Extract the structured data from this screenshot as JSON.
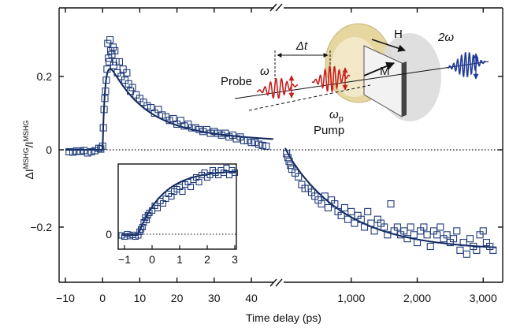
{
  "chart_data": {
    "type": "scatter",
    "xlabel": "Time delay (ps)",
    "ylabel_main": "ΔI",
    "ylabel_sup": "MSHG",
    "ylabel_den": "I",
    "ylabel_den_sup": "MSHG",
    "x_ticks_left": [
      "−10",
      "0",
      "10",
      "20",
      "30",
      "40"
    ],
    "x_ticks_right": [
      "1,000",
      "2,000",
      "3,000"
    ],
    "y_ticks": [
      "0.2",
      "0",
      "−0.2"
    ],
    "axis_break": "//",
    "xlim_left": [
      -10,
      47
    ],
    "xlim_right": [
      0,
      3200
    ],
    "ylim": [
      -0.33,
      0.33
    ],
    "series": [
      {
        "segment": "short-delay",
        "points": [
          [
            -9,
            -0.005
          ],
          [
            -8,
            -0.006
          ],
          [
            -7,
            -0.003
          ],
          [
            -6,
            -0.004
          ],
          [
            -5,
            -0.002
          ],
          [
            -4,
            -0.008
          ],
          [
            -3,
            -0.005
          ],
          [
            -2,
            -0.002
          ],
          [
            -1,
            0.004
          ],
          [
            -0.5,
            0.002
          ],
          [
            0,
            0.01
          ],
          [
            0.2,
            0.06
          ],
          [
            0.4,
            0.11
          ],
          [
            0.6,
            0.14
          ],
          [
            0.8,
            0.16
          ],
          [
            1,
            0.19
          ],
          [
            1.2,
            0.22
          ],
          [
            1.4,
            0.29
          ],
          [
            1.6,
            0.25
          ],
          [
            1.8,
            0.24
          ],
          [
            2,
            0.3
          ],
          [
            2.2,
            0.27
          ],
          [
            2.5,
            0.26
          ],
          [
            2.8,
            0.28
          ],
          [
            3,
            0.23
          ],
          [
            3.3,
            0.27
          ],
          [
            3.6,
            0.24
          ],
          [
            4,
            0.21
          ],
          [
            4.5,
            0.24
          ],
          [
            5,
            0.2
          ],
          [
            5.5,
            0.22
          ],
          [
            6,
            0.19
          ],
          [
            6.5,
            0.21
          ],
          [
            7,
            0.18
          ],
          [
            7.5,
            0.16
          ],
          [
            8,
            0.17
          ],
          [
            9,
            0.15
          ],
          [
            10,
            0.14
          ],
          [
            11,
            0.13
          ],
          [
            12,
            0.12
          ],
          [
            13,
            0.115
          ],
          [
            14,
            0.1
          ],
          [
            15,
            0.11
          ],
          [
            16,
            0.095
          ],
          [
            17,
            0.09
          ],
          [
            18,
            0.08
          ],
          [
            19,
            0.085
          ],
          [
            20,
            0.07
          ],
          [
            21,
            0.08
          ],
          [
            22,
            0.065
          ],
          [
            23,
            0.07
          ],
          [
            24,
            0.06
          ],
          [
            25,
            0.06
          ],
          [
            26,
            0.055
          ],
          [
            27,
            0.05
          ],
          [
            28,
            0.055
          ],
          [
            29,
            0.045
          ],
          [
            30,
            0.05
          ],
          [
            31,
            0.045
          ],
          [
            32,
            0.04
          ],
          [
            33,
            0.045
          ],
          [
            34,
            0.035
          ],
          [
            35,
            0.04
          ],
          [
            36,
            0.03
          ],
          [
            37,
            0.035
          ],
          [
            38,
            0.025
          ],
          [
            39,
            0.025
          ],
          [
            40,
            0.02
          ],
          [
            41,
            0.02
          ],
          [
            42,
            0.015
          ],
          [
            43,
            0.012
          ],
          [
            44,
            0.01
          ]
        ]
      },
      {
        "segment": "long-delay",
        "points": [
          [
            20,
            -0.01
          ],
          [
            40,
            -0.02
          ],
          [
            60,
            -0.03
          ],
          [
            80,
            -0.04
          ],
          [
            100,
            -0.05
          ],
          [
            150,
            -0.06
          ],
          [
            200,
            -0.07
          ],
          [
            250,
            -0.09
          ],
          [
            300,
            -0.1
          ],
          [
            350,
            -0.1
          ],
          [
            400,
            -0.11
          ],
          [
            450,
            -0.12
          ],
          [
            500,
            -0.13
          ],
          [
            550,
            -0.14
          ],
          [
            600,
            -0.12
          ],
          [
            650,
            -0.15
          ],
          [
            700,
            -0.13
          ],
          [
            750,
            -0.14
          ],
          [
            800,
            -0.16
          ],
          [
            850,
            -0.17
          ],
          [
            900,
            -0.15
          ],
          [
            950,
            -0.18
          ],
          [
            1000,
            -0.16
          ],
          [
            1050,
            -0.19
          ],
          [
            1100,
            -0.17
          ],
          [
            1150,
            -0.18
          ],
          [
            1200,
            -0.2
          ],
          [
            1250,
            -0.16
          ],
          [
            1300,
            -0.19
          ],
          [
            1350,
            -0.21
          ],
          [
            1400,
            -0.18
          ],
          [
            1450,
            -0.19
          ],
          [
            1500,
            -0.2
          ],
          [
            1550,
            -0.22
          ],
          [
            1600,
            -0.14
          ],
          [
            1650,
            -0.21
          ],
          [
            1700,
            -0.2
          ],
          [
            1750,
            -0.22
          ],
          [
            1800,
            -0.21
          ],
          [
            1850,
            -0.23
          ],
          [
            1900,
            -0.2
          ],
          [
            1950,
            -0.22
          ],
          [
            2000,
            -0.24
          ],
          [
            2050,
            -0.21
          ],
          [
            2100,
            -0.2
          ],
          [
            2150,
            -0.22
          ],
          [
            2200,
            -0.25
          ],
          [
            2250,
            -0.21
          ],
          [
            2300,
            -0.22
          ],
          [
            2350,
            -0.2
          ],
          [
            2400,
            -0.23
          ],
          [
            2450,
            -0.22
          ],
          [
            2500,
            -0.24
          ],
          [
            2550,
            -0.23
          ],
          [
            2600,
            -0.21
          ],
          [
            2650,
            -0.26
          ],
          [
            2700,
            -0.24
          ],
          [
            2750,
            -0.27
          ],
          [
            2800,
            -0.23
          ],
          [
            2850,
            -0.25
          ],
          [
            2900,
            -0.26
          ],
          [
            2950,
            -0.22
          ],
          [
            3000,
            -0.21
          ],
          [
            3050,
            -0.24
          ],
          [
            3100,
            -0.25
          ],
          [
            3150,
            -0.26
          ]
        ]
      }
    ],
    "inset": {
      "x_ticks": [
        "−1",
        "0",
        "1",
        "2",
        "3"
      ],
      "y_tick": "0",
      "xlim": [
        -1.2,
        3.2
      ],
      "points": [
        [
          -1.1,
          -0.005
        ],
        [
          -1,
          -0.01
        ],
        [
          -0.9,
          0
        ],
        [
          -0.8,
          -0.008
        ],
        [
          -0.7,
          -0.003
        ],
        [
          -0.6,
          -0.01
        ],
        [
          -0.5,
          -0.005
        ],
        [
          -0.45,
          0.01
        ],
        [
          -0.4,
          0.02
        ],
        [
          -0.35,
          0.03
        ],
        [
          -0.3,
          0.05
        ],
        [
          -0.25,
          0.07
        ],
        [
          -0.2,
          0.06
        ],
        [
          -0.15,
          0.08
        ],
        [
          -0.1,
          0.09
        ],
        [
          0,
          0.1
        ],
        [
          0.1,
          0.12
        ],
        [
          0.2,
          0.11
        ],
        [
          0.3,
          0.14
        ],
        [
          0.4,
          0.13
        ],
        [
          0.5,
          0.15
        ],
        [
          0.6,
          0.17
        ],
        [
          0.7,
          0.16
        ],
        [
          0.8,
          0.18
        ],
        [
          0.9,
          0.19
        ],
        [
          1,
          0.2
        ],
        [
          1.1,
          0.18
        ],
        [
          1.2,
          0.21
        ],
        [
          1.3,
          0.22
        ],
        [
          1.4,
          0.2
        ],
        [
          1.5,
          0.23
        ],
        [
          1.6,
          0.24
        ],
        [
          1.7,
          0.22
        ],
        [
          1.8,
          0.25
        ],
        [
          1.9,
          0.26
        ],
        [
          2,
          0.24
        ],
        [
          2.1,
          0.25
        ],
        [
          2.2,
          0.27
        ],
        [
          2.3,
          0.26
        ],
        [
          2.4,
          0.25
        ],
        [
          2.5,
          0.27
        ],
        [
          2.6,
          0.26
        ],
        [
          2.7,
          0.28
        ],
        [
          2.8,
          0.25
        ],
        [
          2.9,
          0.27
        ],
        [
          3,
          0.26
        ]
      ]
    },
    "schematic": {
      "probe": "Probe",
      "pump": "Pump",
      "omega": "ω",
      "omega_p": "ω",
      "omega_p_sub": "p",
      "delta_t": "Δt",
      "H": "H",
      "M": "M",
      "second_harmonic": "2ω"
    },
    "colors": {
      "markers": "#1f3a7a",
      "fit": "#0d2458",
      "probe_pulse": "#c81e1e",
      "output_pulse": "#1f3a9a",
      "holder": "#e8d9a8",
      "sample_disc": "#d9d9d9"
    }
  }
}
